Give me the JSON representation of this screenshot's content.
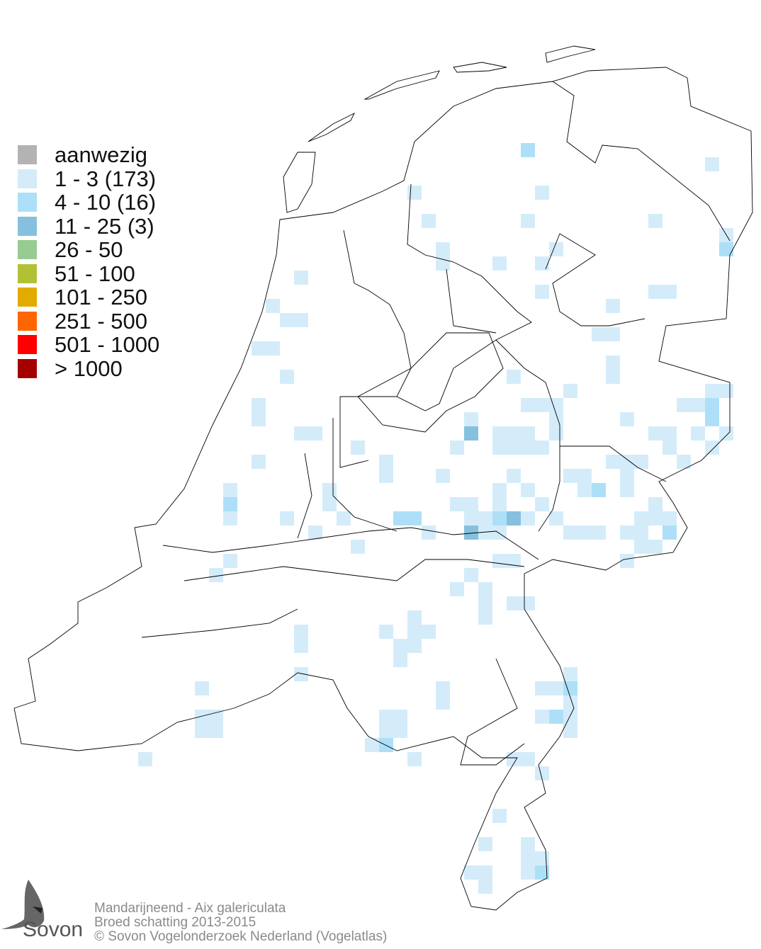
{
  "legend": {
    "items": [
      {
        "label": "aanwezig",
        "color": "#b3b3b3"
      },
      {
        "label": "1 - 3 (173)",
        "color": "#d4ecfa"
      },
      {
        "label": "4 - 10 (16)",
        "color": "#ade0f8"
      },
      {
        "label": "11 - 25 (3)",
        "color": "#86c0de"
      },
      {
        "label": "26 - 50",
        "color": "#98cb91"
      },
      {
        "label": "51 - 100",
        "color": "#b1c136"
      },
      {
        "label": "101 - 250",
        "color": "#e2ab00"
      },
      {
        "label": "251 - 500",
        "color": "#ff6600"
      },
      {
        "label": "501 - 1000",
        "color": "#ff0000"
      },
      {
        "label": "> 1000",
        "color": "#a50000"
      }
    ]
  },
  "footer": {
    "species": "Mandarijneend - Aix galericulata",
    "survey": "Broed schatting 2013-2015",
    "copyright": "© Sovon Vogelonderzoek Nederland (Vogelatlas)"
  },
  "logo": {
    "text": "Sovon",
    "icon": "swallow-icon"
  }
}
